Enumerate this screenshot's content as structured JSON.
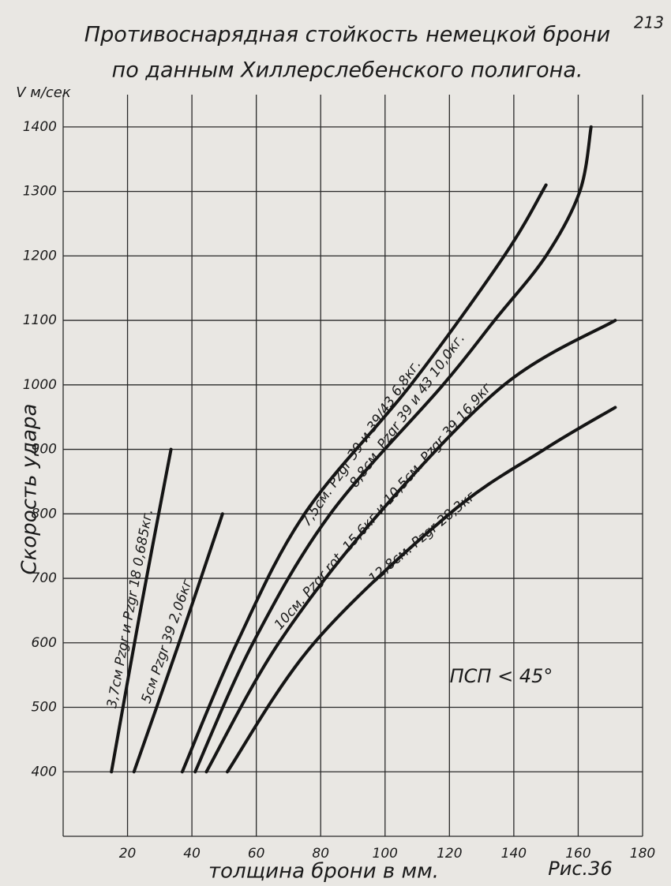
{
  "page_number": "213",
  "chart_data": {
    "type": "line",
    "title": "Противоснарядная стойкость немецкой брони",
    "subtitle": "по данным Хиллерслебенского полигона.",
    "y_unit": "V м/сек",
    "y_label": "Скорость удара",
    "x_label": "толщина брони в мм.",
    "figure_label": "Рис.36",
    "annotation": "ПСП < 45°",
    "xlim": [
      0,
      180
    ],
    "ylim": [
      300,
      1450
    ],
    "xticks": [
      20,
      40,
      60,
      80,
      100,
      120,
      140,
      160,
      180
    ],
    "yticks": [
      400,
      500,
      600,
      700,
      800,
      900,
      1000,
      1100,
      1200,
      1300,
      1400
    ],
    "grid": true,
    "series": [
      {
        "name": "3,7см Pzgr и Pzgr 18 0,685кг.",
        "color": "#151515",
        "x": [
          15,
          24,
          33.5
        ],
        "values": [
          400,
          650,
          900
        ]
      },
      {
        "name": "5см Pzgr 39 2,06кг.",
        "color": "#151515",
        "x": [
          22,
          36,
          49.5
        ],
        "values": [
          400,
          600,
          800
        ]
      },
      {
        "name": "7,5см. Pzgr 39 и 39/43 6,8кг.",
        "color": "#151515",
        "x": [
          37,
          54,
          75,
          108,
          137,
          150
        ],
        "values": [
          400,
          600,
          800,
          1000,
          1200,
          1310
        ]
      },
      {
        "name": "8,8см. Pzgr 39 и 43 10,0кг.",
        "color": "#151515",
        "x": [
          41,
          59,
          83,
          118,
          134,
          150,
          160.5,
          164
        ],
        "values": [
          400,
          600,
          800,
          1000,
          1100,
          1200,
          1300,
          1400
        ]
      },
      {
        "name": "10см. Pzgr rot. 15,6кг и 10,5см. Pzgr 39 16,9кг",
        "color": "#151515",
        "x": [
          44.5,
          67,
          98,
          137,
          171.5
        ],
        "values": [
          400,
          600,
          800,
          1000,
          1100
        ]
      },
      {
        "name": "12,8см. Pzgr 28,3кг",
        "color": "#151515",
        "x": [
          51,
          78,
          120,
          149.5,
          171.5
        ],
        "values": [
          400,
          600,
          800,
          900,
          965
        ]
      }
    ]
  }
}
